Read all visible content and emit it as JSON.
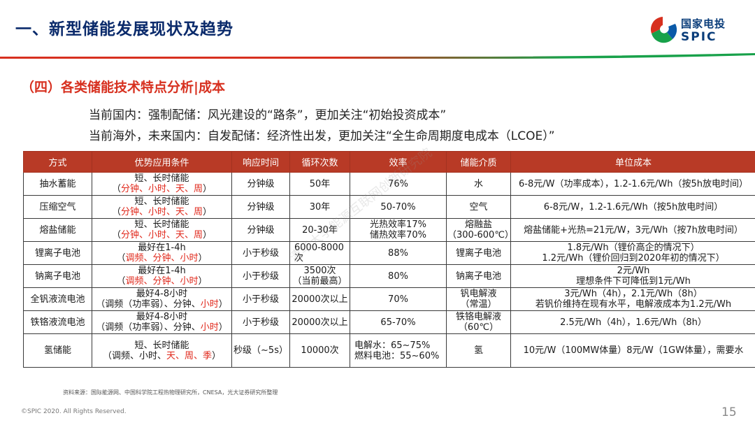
{
  "header": {
    "title": "一、新型储能发展现状及趋势",
    "logo_cn": "国家电投",
    "logo_en": "SPIC",
    "colors": {
      "red": "#d7301f",
      "green": "#18a14a",
      "blue": "#0a2a6b"
    }
  },
  "section": {
    "title": "（四）各类储能技术特点分析|成本",
    "line1": "当前国内：强制配储：风光建设的“路条”，更加关注“初始投资成本”",
    "line2": "当前海外，未来国内：自发配储：经济性出发，更加关注“全生命周期度电成本（LCOE）”"
  },
  "watermark": "清华大学能源互联网创新研究院",
  "table": {
    "headers": [
      "方式",
      "优势应用条件",
      "响应时间",
      "循环次数",
      "效率",
      "储能介质",
      "单位成本"
    ],
    "rows": [
      {
        "method": "抽水蓄能",
        "cond1": "短、长时储能",
        "cond2_pre": "（",
        "cond2_red": "分钟、小时、天、周",
        "cond2_post": "）",
        "response": "分钟级",
        "cycles": "50年",
        "eff1": "76%",
        "eff2": "",
        "medium1": "水",
        "medium2": "",
        "cost1": "6-8元/W（功率成本），1.2-1.6元/Wh（按5h放电时间）",
        "cost2": ""
      },
      {
        "method": "压缩空气",
        "cond1": "短、长时储能",
        "cond2_pre": "（",
        "cond2_red": "分钟、小时、天、周",
        "cond2_post": "）",
        "response": "分钟级",
        "cycles": "30年",
        "eff1": "50-70%",
        "eff2": "",
        "medium1": "空气",
        "medium2": "",
        "cost1": "6-8元/W，1.2-1.6元/Wh（按5h放电时间）",
        "cost2": ""
      },
      {
        "method": "熔盐储能",
        "cond1": "短、长时储能",
        "cond2_pre": "（",
        "cond2_red": "分钟、小时、天、周",
        "cond2_post": "）",
        "response": "分钟级",
        "cycles": "20-30年",
        "eff1": "光热效率17%",
        "eff2": "储热效率70%",
        "medium1": "熔融盐",
        "medium2": "（300-600℃）",
        "cost1": "熔盐储能+光热=21元/W，3元/Wh（按7h放电时间）",
        "cost2": ""
      },
      {
        "method": "锂离子电池",
        "cond1": "最好在1-4h",
        "cond2_pre": "（",
        "cond2_red": "调频、分钟、小时",
        "cond2_post": "）",
        "response": "小于秒级",
        "cycles": "6000-8000次",
        "eff1": "88%",
        "eff2": "",
        "medium1": "锂离子电池",
        "medium2": "",
        "cost1": "1.8元/Wh（锂价高企的情况下）",
        "cost2": "1.2元/Wh（锂价回归到2020年初的情况下）"
      },
      {
        "method": "钠离子电池",
        "cond1": "最好在1-4h",
        "cond2_pre": "（",
        "cond2_red": "调频、分钟、小时",
        "cond2_post": "）",
        "response": "小于秒级",
        "cycles": "3500次",
        "cycles2": "（当前最高）",
        "eff1": "80%",
        "eff2": "",
        "medium1": "钠离子电池",
        "medium2": "",
        "cost1": "2元/Wh",
        "cost2": "理想条件下可降低到1元/Wh"
      },
      {
        "method": "全钒液流电池",
        "cond1": "最好4-8小时",
        "cond2_pre": "（调频（功率弱）、分钟、",
        "cond2_red": "小时",
        "cond2_post": "）",
        "response": "小于秒级",
        "cycles": "20000次以上",
        "eff1": "70%",
        "eff2": "",
        "medium1": "钒电解液",
        "medium2": "（常温）",
        "cost1": "3元/Wh（4h），2.1元/Wh（8h）",
        "cost2": "若钒价维持在现有水平，电解液成本为1.2元/Wh"
      },
      {
        "method": "铁铬液流电池",
        "cond1": "最好4-8小时",
        "cond2_pre": "（调频（功率弱）、分钟、",
        "cond2_red": "小时",
        "cond2_post": "）",
        "response": "小于秒级",
        "cycles": "20000次以上",
        "eff1": "65-70%",
        "eff2": "",
        "medium1": "铁铬电解液",
        "medium2": "（60℃）",
        "cost1": "2.5元/Wh（4h），1.6元/Wh（8h）",
        "cost2": ""
      },
      {
        "method": "氢储能",
        "cond1": "短、长时储能",
        "cond2_pre": "（调频、小时、",
        "cond2_red": "天、周、季",
        "cond2_post": "）",
        "response": "秒级（~5s）",
        "cycles": "10000次",
        "eff1": "电解水：65~75%",
        "eff2": "燃料电池：55~60%",
        "medium1": "氢",
        "medium2": "",
        "cost1": "10元/W（100MW体量）8元/W（1GW体量），需要水",
        "cost2": ""
      }
    ]
  },
  "footer": {
    "source": "资料来源：国际能源网、中国科学院工程热物理研究所，CNESA，光大证券研究所整理",
    "copyright": "©SPIC 2020. All Rights Reserved.",
    "page": "15"
  }
}
